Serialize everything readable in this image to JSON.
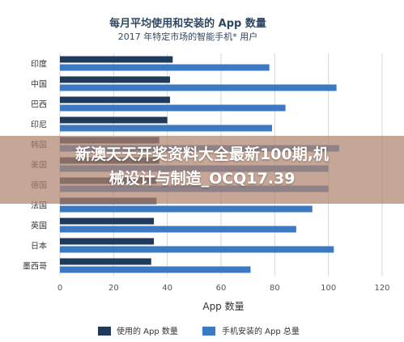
{
  "chart_data": {
    "type": "bar",
    "orientation": "horizontal",
    "title": "每月平均使用和安装的 App 数量",
    "subtitle": "2017 年特定市场的智能手机* 用户",
    "xlabel": "App 数量",
    "xlim": [
      0,
      120
    ],
    "xticks": [
      0,
      20,
      40,
      60,
      80,
      100,
      120
    ],
    "grid": true,
    "legend_position": "bottom",
    "categories": [
      "印度",
      "中国",
      "巴西",
      "印尼",
      "韩国",
      "美国",
      "德国",
      "法国",
      "英国",
      "日本",
      "墨西哥"
    ],
    "series": [
      {
        "name": "使用的 App 数量",
        "color": "#1f3a5a",
        "values": [
          42,
          41,
          41,
          40,
          37,
          37,
          36,
          36,
          35,
          35,
          34
        ]
      },
      {
        "name": "手机安装的 App 总量",
        "color": "#3b79c3",
        "values": [
          78,
          103,
          84,
          79,
          104,
          100,
          100,
          94,
          88,
          102,
          71
        ]
      }
    ]
  },
  "watermark": {
    "text": "新澳天天开奖资料大全最新100期,机\n械设计与制造_OCQ17.39"
  }
}
